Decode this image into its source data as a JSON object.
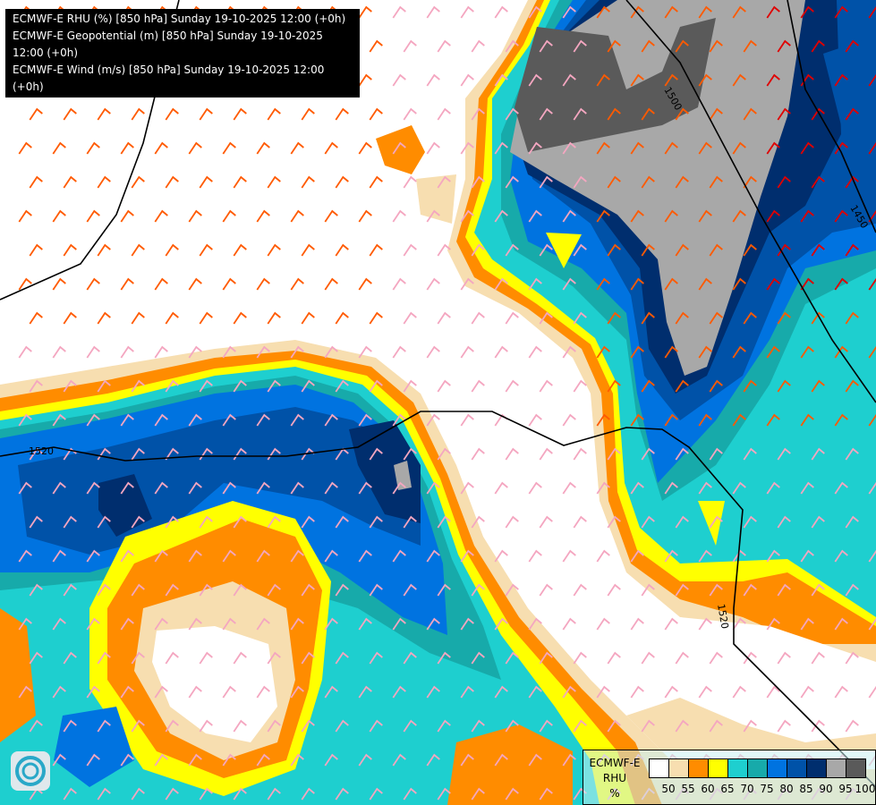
{
  "titles": [
    "ECMWF-E RHU (%) [850 hPa] Sunday 19-10-2025 12:00 (+0h)",
    "ECMWF-E Geopotential (m) [850 hPa] Sunday 19-10-2025 12:00 (+0h)",
    "ECMWF-E Wind (m/s) [850 hPa] Sunday 19-10-2025 12:00 (+0h)"
  ],
  "legend": {
    "line1": "ECMWF-E",
    "line2": "RHU",
    "unit": "%",
    "colors": [
      "#ffffff",
      "#f7deb0",
      "#ff8c00",
      "#ffff00",
      "#1ecfcf",
      "#17aaaa",
      "#0073e0",
      "#0052a8",
      "#002e6e",
      "#a8a8a8",
      "#5a5a5a"
    ],
    "ticks": [
      "50",
      "55",
      "60",
      "65",
      "70",
      "75",
      "80",
      "85",
      "90",
      "95",
      "100"
    ]
  },
  "contour_labels": [
    "1500",
    "1450",
    "1520",
    "1520"
  ],
  "logo": "ECMWF logo",
  "icons": {
    "logo": "ecmwf-swirl-icon"
  }
}
